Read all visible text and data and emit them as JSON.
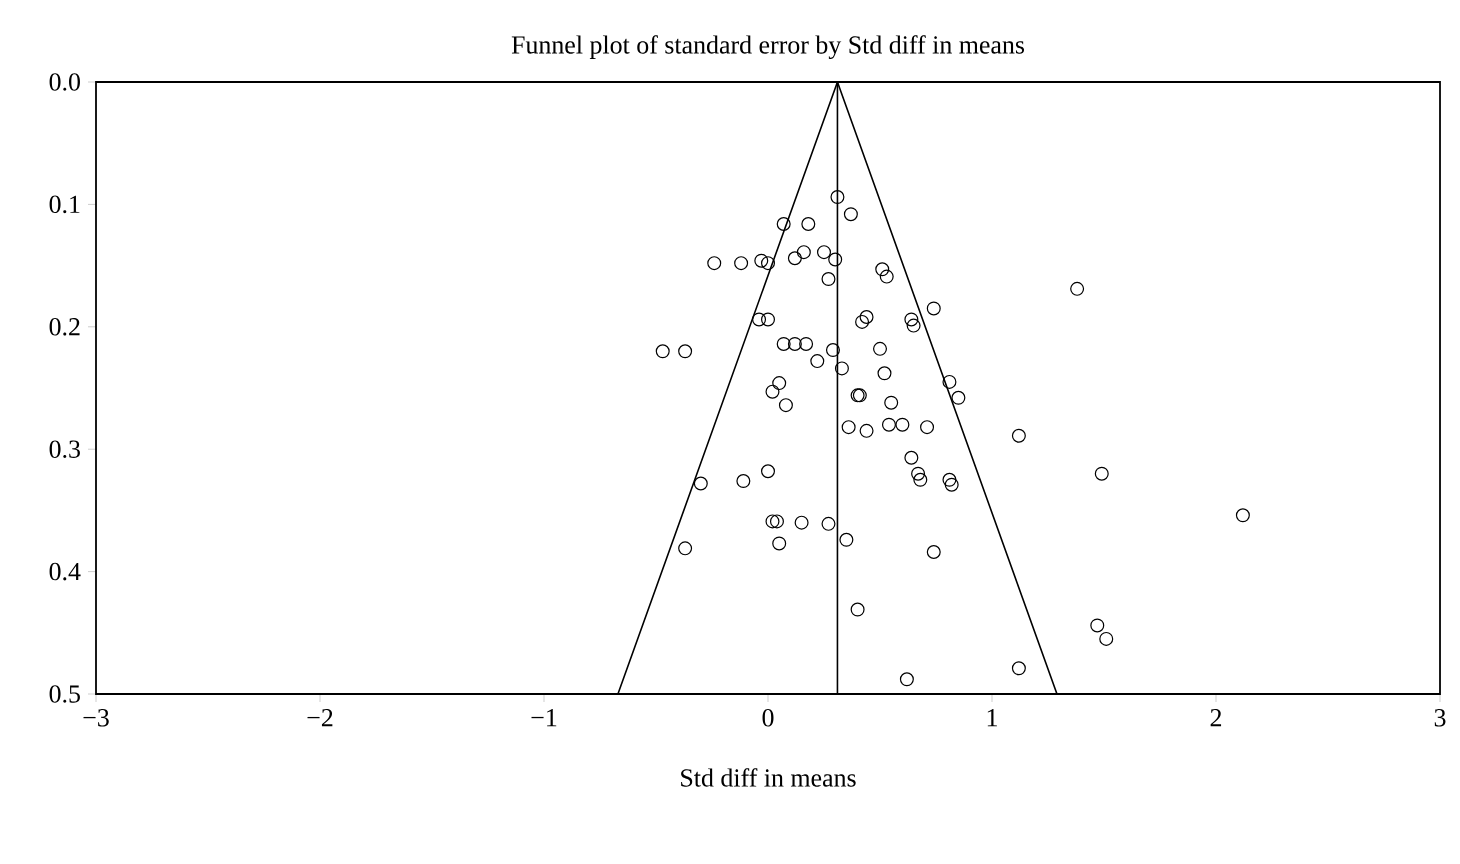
{
  "chart_data": {
    "type": "scatter",
    "title": "Funnel plot of standard error by Std diff in means",
    "xlabel": "Std diff in means",
    "xlim": [
      -3,
      3
    ],
    "ylim": [
      0.5,
      0.0
    ],
    "xticks": [
      {
        "value": -3,
        "label": "−3"
      },
      {
        "value": -2,
        "label": "−2"
      },
      {
        "value": -1,
        "label": "−1"
      },
      0,
      1,
      2,
      3
    ],
    "yticks": [
      {
        "value": 0.0,
        "label": "0.0"
      },
      0.1,
      0.2,
      0.3,
      0.4,
      0.5
    ],
    "marker": "circle",
    "grid": false,
    "ref_lines": [
      {
        "axis": "x",
        "value": 0.31
      }
    ],
    "series": [
      {
        "color": "#000000",
        "x": [
          0.31,
          0.37,
          0.07,
          0.18,
          0.25,
          0.16,
          0.12,
          0.3,
          -0.03,
          0.0,
          -0.12,
          -0.24,
          0.51,
          0.53,
          0.27,
          1.38,
          0.74,
          0.44,
          0.42,
          0.64,
          0.65,
          -0.04,
          0.0,
          -0.47,
          -0.37,
          0.07,
          0.12,
          0.17,
          0.29,
          0.5,
          0.22,
          0.33,
          0.52,
          0.81,
          0.05,
          0.02,
          0.4,
          0.41,
          0.85,
          0.08,
          0.55,
          0.36,
          0.44,
          0.54,
          0.6,
          0.71,
          1.12,
          0.64,
          0.67,
          0.68,
          0.81,
          0.82,
          1.49,
          0.0,
          -0.11,
          -0.3,
          2.12,
          0.02,
          0.04,
          0.15,
          0.27,
          0.35,
          0.05,
          -0.37,
          0.74,
          0.4,
          1.47,
          1.51,
          1.12,
          0.62
        ],
        "values": [
          0.094,
          0.108,
          0.116,
          0.116,
          0.139,
          0.139,
          0.144,
          0.145,
          0.146,
          0.148,
          0.148,
          0.148,
          0.153,
          0.159,
          0.161,
          0.169,
          0.185,
          0.192,
          0.196,
          0.194,
          0.199,
          0.194,
          0.194,
          0.22,
          0.22,
          0.214,
          0.214,
          0.214,
          0.219,
          0.218,
          0.228,
          0.234,
          0.238,
          0.245,
          0.246,
          0.253,
          0.256,
          0.256,
          0.258,
          0.264,
          0.262,
          0.282,
          0.285,
          0.28,
          0.28,
          0.282,
          0.289,
          0.307,
          0.32,
          0.325,
          0.325,
          0.329,
          0.32,
          0.318,
          0.326,
          0.328,
          0.354,
          0.359,
          0.359,
          0.36,
          0.361,
          0.374,
          0.377,
          0.381,
          0.384,
          0.431,
          0.444,
          0.455,
          0.479,
          0.488
        ]
      },
      {
        "type": "line",
        "marker": "none",
        "color": "#000000",
        "x": [
          -0.67,
          0.31,
          1.29
        ],
        "values": [
          0.5,
          0.0,
          0.5
        ]
      }
    ]
  }
}
